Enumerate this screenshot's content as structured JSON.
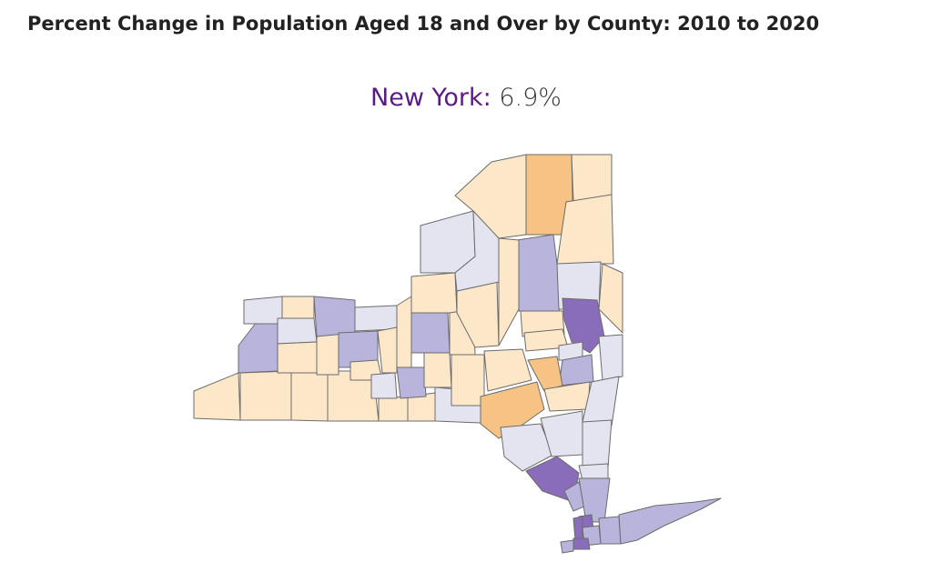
{
  "title": "Percent Change in Population Aged 18 and Over by County: 2010 to 2020",
  "summary": {
    "state_label": "New York:",
    "state_value": "6.9%"
  },
  "colors": {
    "state_label": "#5b1a8a",
    "strong_decline": "#f6c384",
    "decline": "#fde7c9",
    "small_growth": "#e4e4f1",
    "growth": "#b9b4dc",
    "strong_growth": "#8a6dba"
  }
}
